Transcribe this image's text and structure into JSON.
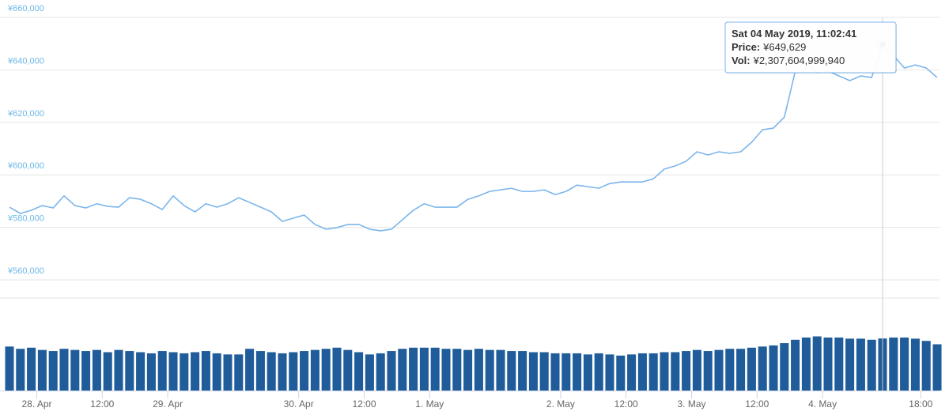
{
  "chart_data": {
    "type": "stock",
    "x": [
      "2019-04-27T19:00",
      "2019-04-27T21:00",
      "2019-04-27T23:00",
      "2019-04-28T01:00",
      "2019-04-28T03:00",
      "2019-04-28T05:00",
      "2019-04-28T07:00",
      "2019-04-28T09:00",
      "2019-04-28T11:00",
      "2019-04-28T13:00",
      "2019-04-28T15:00",
      "2019-04-28T17:00",
      "2019-04-28T19:00",
      "2019-04-28T21:00",
      "2019-04-28T23:00",
      "2019-04-29T01:00",
      "2019-04-29T03:00",
      "2019-04-29T05:00",
      "2019-04-29T07:00",
      "2019-04-29T09:00",
      "2019-04-29T11:00",
      "2019-04-29T13:00",
      "2019-04-29T15:00",
      "2019-04-29T17:00",
      "2019-04-29T19:00",
      "2019-04-29T21:00",
      "2019-04-29T23:00",
      "2019-04-30T01:00",
      "2019-04-30T03:00",
      "2019-04-30T05:00",
      "2019-04-30T07:00",
      "2019-04-30T09:00",
      "2019-04-30T11:00",
      "2019-04-30T13:00",
      "2019-04-30T15:00",
      "2019-04-30T17:00",
      "2019-04-30T19:00",
      "2019-04-30T21:00",
      "2019-04-30T23:00",
      "2019-05-01T01:00",
      "2019-05-01T03:00",
      "2019-05-01T05:00",
      "2019-05-01T07:00",
      "2019-05-01T09:00",
      "2019-05-01T11:00",
      "2019-05-01T13:00",
      "2019-05-01T15:00",
      "2019-05-01T17:00",
      "2019-05-01T19:00",
      "2019-05-01T21:00",
      "2019-05-01T23:00",
      "2019-05-02T01:00",
      "2019-05-02T03:00",
      "2019-05-02T05:00",
      "2019-05-02T07:00",
      "2019-05-02T09:00",
      "2019-05-02T11:00",
      "2019-05-02T13:00",
      "2019-05-02T15:00",
      "2019-05-02T17:00",
      "2019-05-02T19:00",
      "2019-05-02T21:00",
      "2019-05-02T23:00",
      "2019-05-03T01:00",
      "2019-05-03T03:00",
      "2019-05-03T05:00",
      "2019-05-03T07:00",
      "2019-05-03T09:00",
      "2019-05-03T11:00",
      "2019-05-03T13:00",
      "2019-05-03T15:00",
      "2019-05-03T17:00",
      "2019-05-03T19:00",
      "2019-05-03T21:00",
      "2019-05-03T23:00",
      "2019-05-04T01:00",
      "2019-05-04T03:00",
      "2019-05-04T05:00",
      "2019-05-04T07:00",
      "2019-05-04T09:00",
      "2019-05-04T11:00",
      "2019-05-04T13:00",
      "2019-05-04T15:00",
      "2019-05-04T17:00",
      "2019-05-04T19:00",
      "2019-05-04T21:00"
    ],
    "series": [
      {
        "type": "line",
        "color": "#7cb5ec",
        "values": [
          587700,
          585300,
          586500,
          588300,
          587400,
          592000,
          588300,
          587400,
          589000,
          588000,
          587700,
          591300,
          590700,
          589000,
          586800,
          592000,
          588300,
          585900,
          589000,
          587700,
          589000,
          591300,
          589500,
          587700,
          585900,
          582300,
          583500,
          584700,
          581100,
          579300,
          579900,
          581100,
          581100,
          579300,
          578700,
          579300,
          582900,
          586500,
          589000,
          587700,
          587700,
          587700,
          590700,
          592000,
          593700,
          594300,
          594900,
          593700,
          593700,
          594300,
          592500,
          593700,
          596100,
          595500,
          594900,
          596700,
          597300,
          597300,
          597300,
          598500,
          602200,
          603400,
          605200,
          608800,
          607600,
          608800,
          608200,
          608800,
          612400,
          617200,
          617800,
          622000,
          639500,
          643100,
          638900,
          639500,
          637700,
          635900,
          637700,
          637100,
          649629,
          645500,
          640700,
          641900,
          640700,
          637100
        ]
      },
      {
        "type": "bar",
        "axis": "y2",
        "color": "#1f5c99",
        "values": [
          1950000000000,
          1850000000000,
          1900000000000,
          1800000000000,
          1750000000000,
          1850000000000,
          1800000000000,
          1750000000000,
          1800000000000,
          1700000000000,
          1800000000000,
          1750000000000,
          1700000000000,
          1650000000000,
          1750000000000,
          1700000000000,
          1650000000000,
          1700000000000,
          1750000000000,
          1650000000000,
          1600000000000,
          1600000000000,
          1850000000000,
          1750000000000,
          1700000000000,
          1650000000000,
          1700000000000,
          1750000000000,
          1800000000000,
          1850000000000,
          1900000000000,
          1800000000000,
          1700000000000,
          1600000000000,
          1650000000000,
          1750000000000,
          1850000000000,
          1900000000000,
          1900000000000,
          1900000000000,
          1850000000000,
          1850000000000,
          1800000000000,
          1850000000000,
          1800000000000,
          1800000000000,
          1750000000000,
          1750000000000,
          1700000000000,
          1700000000000,
          1650000000000,
          1650000000000,
          1650000000000,
          1600000000000,
          1650000000000,
          1600000000000,
          1550000000000,
          1600000000000,
          1650000000000,
          1650000000000,
          1700000000000,
          1700000000000,
          1750000000000,
          1800000000000,
          1750000000000,
          1800000000000,
          1850000000000,
          1850000000000,
          1900000000000,
          1950000000000,
          2000000000000,
          2100000000000,
          2250000000000,
          2350000000000,
          2400000000000,
          2350000000000,
          2350000000000,
          2300000000000,
          2300000000000,
          2250000000000,
          2307604999940,
          2350000000000,
          2350000000000,
          2300000000000,
          2200000000000,
          2050000000000
        ]
      }
    ],
    "xlim": [
      "2019-04-27T19:00",
      "2019-05-04T21:00"
    ],
    "xticks": [
      {
        "value": "2019-04-28T00:00",
        "label": "28. Apr"
      },
      {
        "value": "2019-04-28T12:00",
        "label": "12:00"
      },
      {
        "value": "2019-04-29T00:00",
        "label": "29. Apr"
      },
      {
        "value": "2019-04-30T00:00",
        "label": "30. Apr"
      },
      {
        "value": "2019-04-30T12:00",
        "label": "12:00"
      },
      {
        "value": "2019-05-01T00:00",
        "label": "1. May"
      },
      {
        "value": "2019-05-02T00:00",
        "label": "2. May"
      },
      {
        "value": "2019-05-02T12:00",
        "label": "12:00"
      },
      {
        "value": "2019-05-03T00:00",
        "label": "3. May"
      },
      {
        "value": "2019-05-03T12:00",
        "label": "12:00"
      },
      {
        "value": "2019-05-04T00:00",
        "label": "4. May"
      },
      {
        "value": "2019-05-04T18:00",
        "label": "18:00"
      }
    ],
    "ylim": [
      560000,
      660000
    ],
    "yticks": [
      {
        "value": 560000,
        "label": "¥560,000"
      },
      {
        "value": 580000,
        "label": "¥580,000"
      },
      {
        "value": 600000,
        "label": "¥600,000"
      },
      {
        "value": 620000,
        "label": "¥620,000"
      },
      {
        "value": 640000,
        "label": "¥640,000"
      },
      {
        "value": 660000,
        "label": "¥660,000"
      }
    ],
    "y2lim": [
      0,
      4100000000000
    ],
    "grid": true,
    "tooltip": {
      "title": "Sat 04 May 2019, 11:02:41",
      "lines": [
        {
          "label": "Price:",
          "value": 649629,
          "value_label": "¥649,629"
        },
        {
          "label": "Vol:",
          "value": 2307604999940,
          "value_label": "¥2,307,604,999,940"
        }
      ]
    }
  }
}
